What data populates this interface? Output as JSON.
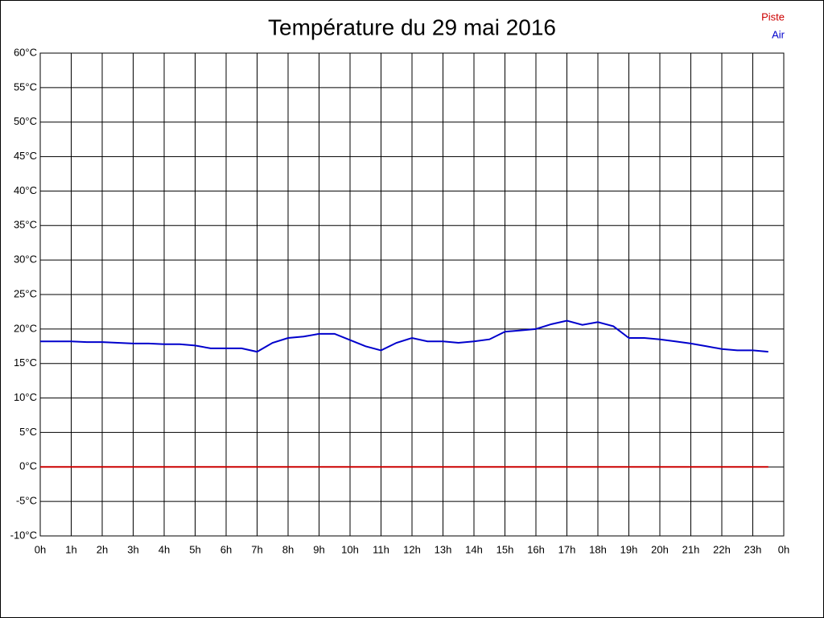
{
  "chart_data": {
    "type": "line",
    "title": "Température du 29 mai 2016",
    "x": [
      0,
      0.5,
      1,
      1.5,
      2,
      2.5,
      3,
      3.5,
      4,
      4.5,
      5,
      5.5,
      6,
      6.5,
      7,
      7.5,
      8,
      8.5,
      9,
      9.5,
      10,
      10.5,
      11,
      11.5,
      12,
      12.5,
      13,
      13.5,
      14,
      14.5,
      15,
      15.5,
      16,
      16.5,
      17,
      17.5,
      18,
      18.5,
      19,
      19.5,
      20,
      20.5,
      21,
      21.5,
      22,
      22.5,
      23,
      23.5
    ],
    "series": [
      {
        "name": "Piste",
        "color": "#cc0000",
        "values": [
          0,
          0,
          0,
          0,
          0,
          0,
          0,
          0,
          0,
          0,
          0,
          0,
          0,
          0,
          0,
          0,
          0,
          0,
          0,
          0,
          0,
          0,
          0,
          0,
          0,
          0,
          0,
          0,
          0,
          0,
          0,
          0,
          0,
          0,
          0,
          0,
          0,
          0,
          0,
          0,
          0,
          0,
          0,
          0,
          0,
          0,
          0,
          0
        ]
      },
      {
        "name": "Air",
        "color": "#0000cc",
        "values": [
          18.2,
          18.2,
          18.2,
          18.1,
          18.1,
          18.0,
          17.9,
          17.9,
          17.8,
          17.8,
          17.6,
          17.2,
          17.2,
          17.2,
          16.7,
          18.0,
          18.7,
          18.9,
          19.3,
          19.3,
          18.4,
          17.5,
          16.9,
          18.0,
          18.7,
          18.2,
          18.2,
          18.0,
          18.2,
          18.5,
          19.6,
          19.8,
          20.0,
          20.7,
          21.2,
          20.6,
          21.0,
          20.4,
          18.7,
          18.7,
          18.5,
          18.2,
          17.9,
          17.5,
          17.1,
          16.9,
          16.9,
          16.7
        ]
      }
    ],
    "xlim": [
      0,
      24
    ],
    "xticks": [
      {
        "value": 0,
        "label": "0h"
      },
      {
        "value": 1,
        "label": "1h"
      },
      {
        "value": 2,
        "label": "2h"
      },
      {
        "value": 3,
        "label": "3h"
      },
      {
        "value": 4,
        "label": "4h"
      },
      {
        "value": 5,
        "label": "5h"
      },
      {
        "value": 6,
        "label": "6h"
      },
      {
        "value": 7,
        "label": "7h"
      },
      {
        "value": 8,
        "label": "8h"
      },
      {
        "value": 9,
        "label": "9h"
      },
      {
        "value": 10,
        "label": "10h"
      },
      {
        "value": 11,
        "label": "11h"
      },
      {
        "value": 12,
        "label": "12h"
      },
      {
        "value": 13,
        "label": "13h"
      },
      {
        "value": 14,
        "label": "14h"
      },
      {
        "value": 15,
        "label": "15h"
      },
      {
        "value": 16,
        "label": "16h"
      },
      {
        "value": 17,
        "label": "17h"
      },
      {
        "value": 18,
        "label": "18h"
      },
      {
        "value": 19,
        "label": "19h"
      },
      {
        "value": 20,
        "label": "20h"
      },
      {
        "value": 21,
        "label": "21h"
      },
      {
        "value": 22,
        "label": "22h"
      },
      {
        "value": 23,
        "label": "23h"
      },
      {
        "value": 24,
        "label": "0h"
      }
    ],
    "ylim": [
      -10,
      60
    ],
    "yticks": [
      {
        "value": -10,
        "label": "-10°C"
      },
      {
        "value": -5,
        "label": "-5°C"
      },
      {
        "value": 0,
        "label": "0°C"
      },
      {
        "value": 5,
        "label": "5°C"
      },
      {
        "value": 10,
        "label": "10°C"
      },
      {
        "value": 15,
        "label": "15°C"
      },
      {
        "value": 20,
        "label": "20°C"
      },
      {
        "value": 25,
        "label": "25°C"
      },
      {
        "value": 30,
        "label": "30°C"
      },
      {
        "value": 35,
        "label": "35°C"
      },
      {
        "value": 40,
        "label": "40°C"
      },
      {
        "value": 45,
        "label": "45°C"
      },
      {
        "value": 50,
        "label": "50°C"
      },
      {
        "value": 55,
        "label": "55°C"
      },
      {
        "value": 60,
        "label": "60°C"
      }
    ],
    "grid": true
  }
}
